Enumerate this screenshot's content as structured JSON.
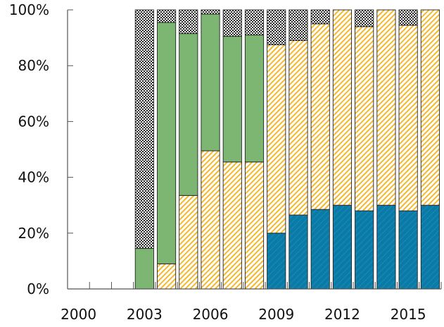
{
  "chart_data": {
    "type": "bar",
    "stacked": true,
    "categories": [
      "2000",
      "2001",
      "2002",
      "2003",
      "2004",
      "2005",
      "2006",
      "2007",
      "2008",
      "2009",
      "2010",
      "2011",
      "2012",
      "2013",
      "2014",
      "2015",
      "2016"
    ],
    "x_tick_labels": [
      "2000",
      "2003",
      "2006",
      "2009",
      "2012",
      "2015"
    ],
    "y_tick_labels": [
      "0%",
      "20%",
      "40%",
      "60%",
      "80%",
      "100%"
    ],
    "ylim": [
      0,
      100
    ],
    "title": "",
    "xlabel": "",
    "ylabel": "",
    "grid": false,
    "legend": "none",
    "series": [
      {
        "fill": "solid",
        "color": "#0a7ba7",
        "values": [
          0,
          0,
          0,
          0,
          0,
          0,
          0,
          0,
          0,
          20,
          26.5,
          28.5,
          30,
          28,
          30,
          28,
          30
        ]
      },
      {
        "fill": "diagonal-stripes",
        "color": "#f5b82e",
        "values": [
          0,
          0,
          0,
          0,
          9,
          33.5,
          49.5,
          45.5,
          45.5,
          67.5,
          62.5,
          66.5,
          70,
          66,
          70,
          66.5,
          70
        ]
      },
      {
        "fill": "solid",
        "color": "#7db572",
        "values": [
          0,
          0,
          0,
          14.5,
          86.5,
          58,
          49,
          45,
          45.5,
          0,
          0,
          0,
          0,
          0,
          0,
          0,
          0
        ]
      },
      {
        "fill": "checker",
        "color": "#333333",
        "values": [
          0,
          0,
          0,
          85.5,
          4.5,
          8.5,
          1.5,
          9.5,
          9,
          12.5,
          11,
          5,
          0,
          6,
          0,
          5.5,
          0
        ]
      }
    ]
  }
}
